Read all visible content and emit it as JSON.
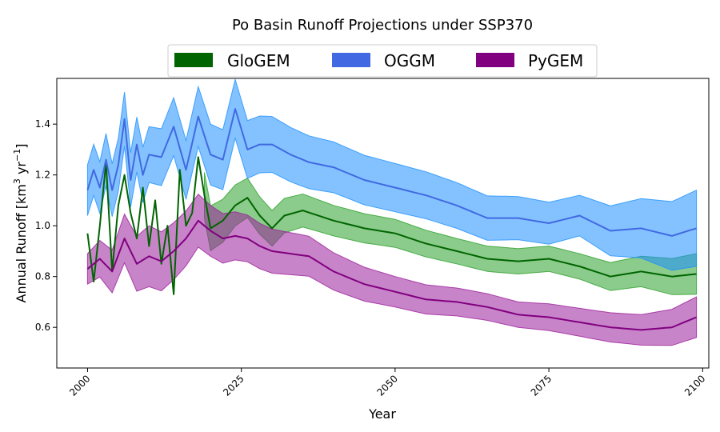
{
  "chart_data": {
    "type": "area",
    "title": "Po Basin Runoff Projections under SSP370",
    "xlabel": "Year",
    "ylabel_main": "Annual Runoff [km",
    "ylabel_sup1": "3",
    "ylabel_mid": " yr",
    "ylabel_sup2": "−1",
    "ylabel_end": "]",
    "xlim": [
      1995,
      2101
    ],
    "ylim": [
      0.44,
      1.58
    ],
    "xticks": [
      2000,
      2025,
      2050,
      2075,
      2100
    ],
    "yticks": [
      0.6,
      0.8,
      1.0,
      1.2,
      1.4
    ],
    "ytick_labels": [
      "0.6",
      "0.8",
      "1.0",
      "1.2",
      "1.4"
    ],
    "legend_position": "top-center, outside plot",
    "series": [
      {
        "name": "GloGEM",
        "line_color": "#006400",
        "fill_color": "#2ca02c",
        "band_start": 2019,
        "anchors_mean": [
          [
            2000,
            0.97
          ],
          [
            2001,
            0.78
          ],
          [
            2002,
            1.0
          ],
          [
            2003,
            1.25
          ],
          [
            2004,
            0.82
          ],
          [
            2005,
            1.08
          ],
          [
            2006,
            1.2
          ],
          [
            2007,
            1.05
          ],
          [
            2008,
            0.95
          ],
          [
            2009,
            1.15
          ],
          [
            2010,
            0.92
          ],
          [
            2011,
            1.1
          ],
          [
            2012,
            0.85
          ],
          [
            2013,
            1.0
          ],
          [
            2014,
            0.73
          ],
          [
            2015,
            1.22
          ],
          [
            2016,
            1.0
          ],
          [
            2017,
            1.05
          ],
          [
            2018,
            1.27
          ],
          [
            2019,
            1.12
          ],
          [
            2020,
            0.99
          ],
          [
            2022,
            1.02
          ],
          [
            2024,
            1.08
          ],
          [
            2026,
            1.11
          ],
          [
            2028,
            1.04
          ],
          [
            2030,
            0.99
          ],
          [
            2032,
            1.04
          ],
          [
            2035,
            1.06
          ],
          [
            2040,
            1.02
          ],
          [
            2045,
            0.99
          ],
          [
            2050,
            0.97
          ],
          [
            2055,
            0.93
          ],
          [
            2060,
            0.9
          ],
          [
            2065,
            0.87
          ],
          [
            2070,
            0.86
          ],
          [
            2075,
            0.87
          ],
          [
            2080,
            0.84
          ],
          [
            2085,
            0.8
          ],
          [
            2090,
            0.82
          ],
          [
            2095,
            0.8
          ],
          [
            2099,
            0.81
          ]
        ],
        "anchors_width": [
          [
            2019,
            0.09
          ],
          [
            2030,
            0.07
          ],
          [
            2040,
            0.06
          ],
          [
            2060,
            0.05
          ],
          [
            2080,
            0.05
          ],
          [
            2090,
            0.06
          ],
          [
            2099,
            0.08
          ]
        ]
      },
      {
        "name": "OGGM",
        "line_color": "#4169e1",
        "fill_color": "#1e90ff",
        "anchors_mean": [
          [
            2000,
            1.14
          ],
          [
            2001,
            1.22
          ],
          [
            2002,
            1.15
          ],
          [
            2003,
            1.26
          ],
          [
            2004,
            1.14
          ],
          [
            2005,
            1.24
          ],
          [
            2006,
            1.42
          ],
          [
            2007,
            1.18
          ],
          [
            2008,
            1.32
          ],
          [
            2009,
            1.2
          ],
          [
            2010,
            1.28
          ],
          [
            2012,
            1.27
          ],
          [
            2014,
            1.39
          ],
          [
            2016,
            1.22
          ],
          [
            2018,
            1.43
          ],
          [
            2020,
            1.28
          ],
          [
            2022,
            1.26
          ],
          [
            2024,
            1.46
          ],
          [
            2026,
            1.3
          ],
          [
            2028,
            1.32
          ],
          [
            2030,
            1.32
          ],
          [
            2033,
            1.28
          ],
          [
            2036,
            1.25
          ],
          [
            2040,
            1.23
          ],
          [
            2045,
            1.18
          ],
          [
            2050,
            1.15
          ],
          [
            2055,
            1.12
          ],
          [
            2060,
            1.08
          ],
          [
            2065,
            1.03
          ],
          [
            2070,
            1.03
          ],
          [
            2075,
            1.01
          ],
          [
            2080,
            1.04
          ],
          [
            2085,
            0.98
          ],
          [
            2090,
            0.99
          ],
          [
            2095,
            0.96
          ],
          [
            2099,
            0.99
          ]
        ],
        "anchors_width": [
          [
            2000,
            0.1
          ],
          [
            2020,
            0.12
          ],
          [
            2040,
            0.1
          ],
          [
            2060,
            0.09
          ],
          [
            2080,
            0.08
          ],
          [
            2099,
            0.15
          ]
        ]
      },
      {
        "name": "PyGEM",
        "line_color": "#800080",
        "fill_color": "#9b1f9b",
        "anchors_mean": [
          [
            2000,
            0.83
          ],
          [
            2002,
            0.87
          ],
          [
            2004,
            0.82
          ],
          [
            2006,
            0.95
          ],
          [
            2008,
            0.85
          ],
          [
            2010,
            0.88
          ],
          [
            2012,
            0.86
          ],
          [
            2014,
            0.9
          ],
          [
            2016,
            0.95
          ],
          [
            2018,
            1.02
          ],
          [
            2020,
            0.98
          ],
          [
            2022,
            0.95
          ],
          [
            2024,
            0.96
          ],
          [
            2026,
            0.95
          ],
          [
            2028,
            0.92
          ],
          [
            2030,
            0.9
          ],
          [
            2033,
            0.89
          ],
          [
            2036,
            0.88
          ],
          [
            2040,
            0.82
          ],
          [
            2045,
            0.77
          ],
          [
            2050,
            0.74
          ],
          [
            2055,
            0.71
          ],
          [
            2060,
            0.7
          ],
          [
            2065,
            0.68
          ],
          [
            2070,
            0.65
          ],
          [
            2075,
            0.64
          ],
          [
            2080,
            0.62
          ],
          [
            2085,
            0.6
          ],
          [
            2090,
            0.59
          ],
          [
            2095,
            0.6
          ],
          [
            2099,
            0.64
          ]
        ],
        "anchors_width": [
          [
            2000,
            0.06
          ],
          [
            2010,
            0.12
          ],
          [
            2020,
            0.1
          ],
          [
            2035,
            0.08
          ],
          [
            2050,
            0.06
          ],
          [
            2070,
            0.05
          ],
          [
            2090,
            0.06
          ],
          [
            2099,
            0.08
          ]
        ]
      }
    ]
  }
}
